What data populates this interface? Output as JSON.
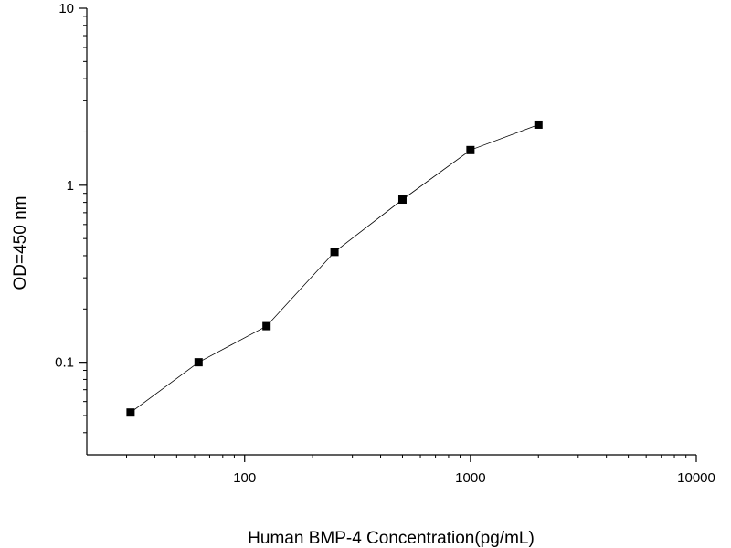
{
  "chart_data": {
    "type": "scatter",
    "line_connected": true,
    "xlabel": "Human BMP-4  Concentration(pg/mL)",
    "ylabel": "OD=450 nm",
    "xscale": "log",
    "yscale": "log",
    "xlim": [
      20,
      10000
    ],
    "ylim": [
      0.03,
      10
    ],
    "x_ticks": [
      100,
      1000,
      10000
    ],
    "x_tick_labels": [
      "100",
      "1000",
      "10000"
    ],
    "y_ticks": [
      0.1,
      1,
      10
    ],
    "y_tick_labels": [
      "0.1",
      "1",
      "10"
    ],
    "grid": false,
    "legend": false,
    "marker": "square",
    "color": "#000000",
    "x": [
      31.25,
      62.5,
      125,
      250,
      500,
      1000,
      2000
    ],
    "y": [
      0.052,
      0.1,
      0.16,
      0.42,
      0.83,
      1.58,
      2.2
    ]
  }
}
